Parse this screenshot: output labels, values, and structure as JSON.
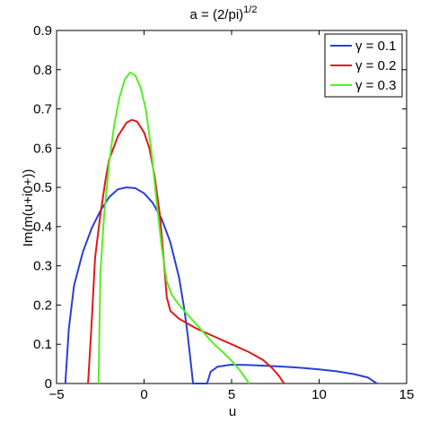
{
  "chart_data": {
    "type": "line",
    "title": "a = (2/pi)",
    "title_superscript": "1/2",
    "xlabel": "u",
    "ylabel": "Im(m(u+i0+))",
    "xlim": [
      -5,
      15
    ],
    "ylim": [
      0,
      0.9
    ],
    "x_ticks": [
      -5,
      0,
      5,
      10,
      15
    ],
    "x_tick_labels": [
      "−5",
      "0",
      "5",
      "10",
      "15"
    ],
    "y_ticks": [
      0,
      0.1,
      0.2,
      0.3,
      0.4,
      0.5,
      0.6,
      0.7,
      0.8,
      0.9
    ],
    "y_tick_labels": [
      "0",
      "0.1",
      "0.2",
      "0.3",
      "0.4",
      "0.5",
      "0.6",
      "0.7",
      "0.8",
      "0.9"
    ],
    "grid": false,
    "legend_position": "top-right",
    "series": [
      {
        "name": "γ = 0.1",
        "color": "#2a3fd6",
        "points": [
          [
            -4.5,
            0
          ],
          [
            -4.3,
            0.14
          ],
          [
            -4.0,
            0.25
          ],
          [
            -3.5,
            0.335
          ],
          [
            -3.0,
            0.395
          ],
          [
            -2.5,
            0.44
          ],
          [
            -2.0,
            0.475
          ],
          [
            -1.5,
            0.495
          ],
          [
            -1.0,
            0.5
          ],
          [
            -0.5,
            0.498
          ],
          [
            0.0,
            0.485
          ],
          [
            0.5,
            0.46
          ],
          [
            1.0,
            0.42
          ],
          [
            1.5,
            0.36
          ],
          [
            2.0,
            0.27
          ],
          [
            2.3,
            0.19
          ],
          [
            2.5,
            0.12
          ],
          [
            2.7,
            0.04
          ],
          [
            2.8,
            0
          ],
          [
            3.6,
            0
          ],
          [
            3.8,
            0.03
          ],
          [
            4.2,
            0.043
          ],
          [
            5.0,
            0.048
          ],
          [
            6.0,
            0.047
          ],
          [
            7.0,
            0.045
          ],
          [
            8.0,
            0.043
          ],
          [
            9.0,
            0.04
          ],
          [
            10.0,
            0.036
          ],
          [
            11.0,
            0.031
          ],
          [
            12.0,
            0.024
          ],
          [
            12.8,
            0.015
          ],
          [
            13.3,
            0
          ]
        ]
      },
      {
        "name": "γ = 0.2",
        "color": "#e01818",
        "points": [
          [
            -3.2,
            0
          ],
          [
            -3.0,
            0.15
          ],
          [
            -2.8,
            0.32
          ],
          [
            -2.5,
            0.43
          ],
          [
            -2.2,
            0.52
          ],
          [
            -2.0,
            0.57
          ],
          [
            -1.5,
            0.63
          ],
          [
            -1.0,
            0.665
          ],
          [
            -0.7,
            0.672
          ],
          [
            -0.4,
            0.668
          ],
          [
            0.0,
            0.64
          ],
          [
            0.3,
            0.6
          ],
          [
            0.6,
            0.53
          ],
          [
            0.9,
            0.43
          ],
          [
            1.1,
            0.33
          ],
          [
            1.3,
            0.22
          ],
          [
            1.5,
            0.185
          ],
          [
            2.0,
            0.165
          ],
          [
            3.0,
            0.14
          ],
          [
            4.0,
            0.12
          ],
          [
            5.0,
            0.1
          ],
          [
            6.0,
            0.08
          ],
          [
            6.8,
            0.06
          ],
          [
            7.3,
            0.04
          ],
          [
            7.7,
            0.02
          ],
          [
            8.0,
            0
          ]
        ]
      },
      {
        "name": "γ = 0.3",
        "color": "#55ee22",
        "points": [
          [
            -2.6,
            0
          ],
          [
            -2.5,
            0.28
          ],
          [
            -2.3,
            0.42
          ],
          [
            -2.0,
            0.56
          ],
          [
            -1.7,
            0.66
          ],
          [
            -1.4,
            0.73
          ],
          [
            -1.1,
            0.775
          ],
          [
            -0.8,
            0.793
          ],
          [
            -0.5,
            0.785
          ],
          [
            -0.2,
            0.755
          ],
          [
            0.1,
            0.7
          ],
          [
            0.4,
            0.6
          ],
          [
            0.7,
            0.47
          ],
          [
            1.0,
            0.35
          ],
          [
            1.3,
            0.26
          ],
          [
            1.6,
            0.225
          ],
          [
            2.0,
            0.2
          ],
          [
            2.5,
            0.175
          ],
          [
            3.0,
            0.15
          ],
          [
            3.5,
            0.125
          ],
          [
            4.0,
            0.1
          ],
          [
            4.5,
            0.08
          ],
          [
            5.0,
            0.058
          ],
          [
            5.5,
            0.032
          ],
          [
            6.0,
            0
          ]
        ]
      }
    ]
  }
}
